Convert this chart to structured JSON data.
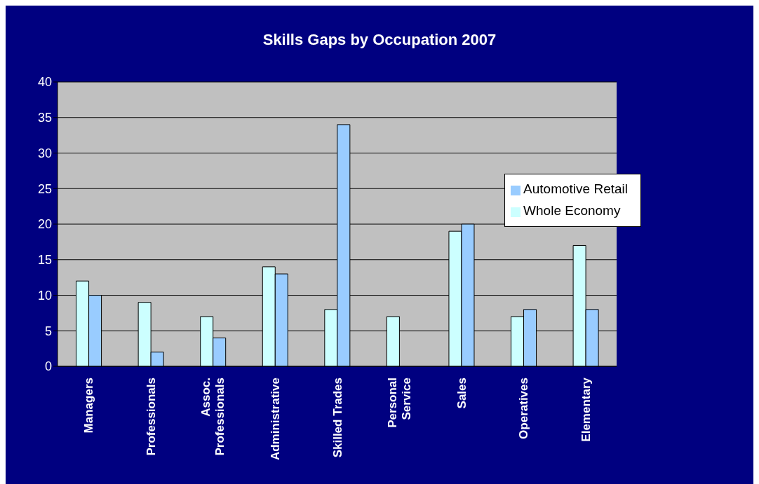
{
  "chart_data": {
    "type": "bar",
    "title": "Skills Gaps by Occupation 2007",
    "categories": [
      "Managers",
      "Professionals",
      "Assoc.\nProfessionals",
      "Administrative",
      "Skilled Trades",
      "Personal\nService",
      "Sales",
      "Operatives",
      "Elementary"
    ],
    "series": [
      {
        "name": "Whole Economy",
        "color": "#ccffff",
        "values": [
          12,
          9,
          7,
          14,
          8,
          7,
          19,
          7,
          17
        ]
      },
      {
        "name": "Automotive Retail",
        "color": "#99ccff",
        "values": [
          10,
          2,
          4,
          13,
          34,
          null,
          20,
          8,
          8
        ]
      }
    ],
    "ylim": [
      0,
      40
    ],
    "yticks": [
      0,
      5,
      10,
      15,
      20,
      25,
      30,
      35,
      40
    ],
    "grid": "y",
    "legend": "top right"
  }
}
